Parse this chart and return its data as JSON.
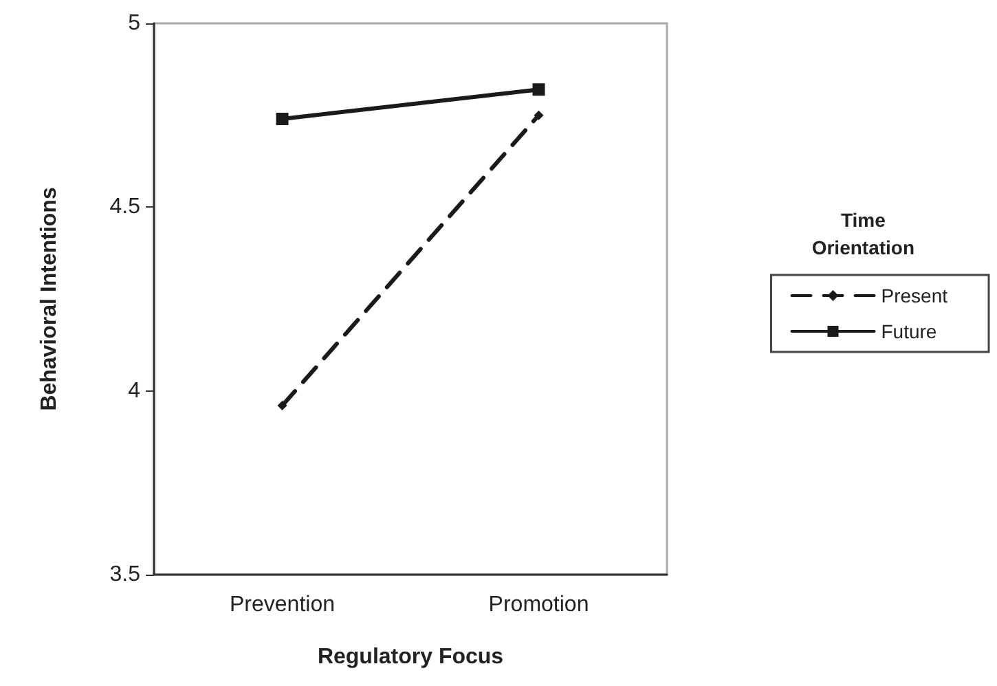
{
  "chart_data": {
    "type": "line",
    "xlabel": "Regulatory Focus",
    "ylabel": "Behavioral Intentions",
    "legend_title": "Time Orientation",
    "categories": [
      "Prevention",
      "Promotion"
    ],
    "series": [
      {
        "name": "Present",
        "color": "#1a1a1a",
        "values": [
          3.96,
          4.75
        ],
        "marker": "diamond",
        "line_style": "dashed"
      },
      {
        "name": "Future",
        "color": "#1a1a1a",
        "values": [
          4.74,
          4.82
        ],
        "marker": "square",
        "line_style": "solid"
      }
    ],
    "ylim": [
      3.5,
      5
    ],
    "yticks": [
      3.5,
      4,
      4.5,
      5
    ],
    "grid": false,
    "legend": "right"
  }
}
